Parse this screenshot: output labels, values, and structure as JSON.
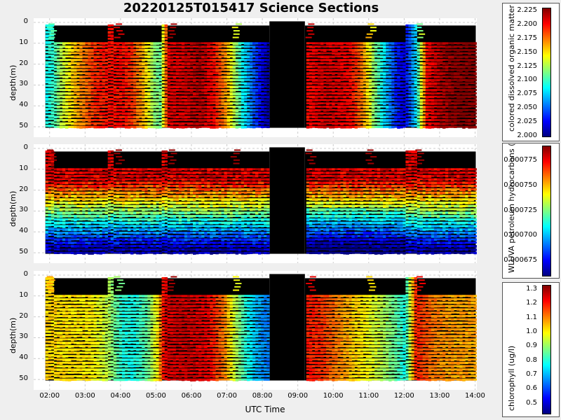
{
  "title": "20220125T015417 Science Sections",
  "xlabel": "UTC Time",
  "colors": {
    "background": "#efefef",
    "plot_bg": "#ffffff",
    "grid": "#cccccc",
    "nodata": "#000000"
  },
  "chart_data": [
    {
      "type": "heatmap",
      "name": "cdom",
      "ylabel": "depth(m)",
      "colorbar_label": "colored dissolved organic matter (ppb)",
      "colorbar_ticks": [
        "2.225",
        "2.200",
        "2.175",
        "2.150",
        "2.125",
        "2.100",
        "2.075",
        "2.050",
        "2.025",
        "2.000"
      ],
      "crange": [
        2.0,
        2.23
      ],
      "yticks": [
        "0",
        "10",
        "20",
        "30",
        "40",
        "50"
      ],
      "xticks": [
        "02:00",
        "03:00",
        "04:00",
        "05:00",
        "06:00",
        "07:00",
        "08:00",
        "09:00",
        "10:00",
        "11:00",
        "12:00",
        "13:00",
        "14:00"
      ],
      "xlim_hours": [
        1.55,
        14.05
      ],
      "ylim_m": [
        -2,
        55
      ],
      "profile": [
        [
          1.88,
          2.09
        ],
        [
          2.1,
          2.1
        ],
        [
          2.3,
          2.13
        ],
        [
          2.7,
          2.16
        ],
        [
          3.2,
          2.19
        ],
        [
          3.6,
          2.2
        ],
        [
          3.85,
          2.2
        ],
        [
          4.05,
          2.2
        ],
        [
          4.3,
          2.19
        ],
        [
          4.6,
          2.16
        ],
        [
          4.9,
          2.12
        ],
        [
          5.1,
          2.11
        ],
        [
          5.3,
          2.21
        ],
        [
          5.7,
          2.21
        ],
        [
          6.2,
          2.22
        ],
        [
          6.6,
          2.2
        ],
        [
          6.9,
          2.17
        ],
        [
          7.15,
          2.13
        ],
        [
          7.4,
          2.09
        ],
        [
          7.7,
          2.05
        ],
        [
          8.0,
          2.02
        ],
        [
          8.2,
          2.0
        ],
        [
          9.2,
          2.2
        ],
        [
          9.6,
          2.21
        ],
        [
          10.1,
          2.21
        ],
        [
          10.5,
          2.2
        ],
        [
          10.8,
          2.17
        ],
        [
          11.1,
          2.12
        ],
        [
          11.4,
          2.08
        ],
        [
          11.7,
          2.04
        ],
        [
          11.95,
          2.02
        ],
        [
          12.3,
          2.08
        ],
        [
          12.6,
          2.2
        ],
        [
          13.0,
          2.22
        ],
        [
          13.5,
          2.23
        ],
        [
          14.0,
          2.23
        ]
      ]
    },
    {
      "type": "heatmap",
      "name": "uva",
      "ylabel": "WLUVA petroleum hydrocarbons (kg)",
      "colorbar_label": "WLUVA petroleum hydrocarbons (kg)",
      "colorbar_ticks": [
        "0.000775",
        "0.000750",
        "0.000725",
        "0.000700",
        "0.000675"
      ],
      "crange": [
        0.00066,
        0.00079
      ],
      "yticks": [
        "0",
        "10",
        "20",
        "30",
        "40",
        "50"
      ],
      "xticks": [
        "02:00",
        "03:00",
        "04:00",
        "05:00",
        "06:00",
        "07:00",
        "08:00",
        "09:00",
        "10:00",
        "11:00",
        "12:00",
        "13:00",
        "14:00"
      ],
      "xlim_hours": [
        1.55,
        14.05
      ],
      "ylim_m": [
        -2,
        55
      ]
    },
    {
      "type": "heatmap",
      "name": "chlorophyll",
      "ylabel": "depth(m)",
      "colorbar_label": "chlorophyll (ug/l)",
      "colorbar_ticks": [
        "1.3",
        "1.2",
        "1.1",
        "1.0",
        "0.9",
        "0.8",
        "0.7",
        "0.6",
        "0.5"
      ],
      "crange": [
        0.43,
        1.33
      ],
      "yticks": [
        "0",
        "10",
        "20",
        "30",
        "40",
        "50"
      ],
      "xticks": [
        "02:00",
        "03:00",
        "04:00",
        "05:00",
        "06:00",
        "07:00",
        "08:00",
        "09:00",
        "10:00",
        "11:00",
        "12:00",
        "13:00",
        "14:00"
      ],
      "xlim_hours": [
        1.55,
        14.05
      ],
      "ylim_m": [
        -2,
        55
      ],
      "profile": [
        [
          1.88,
          1.03
        ],
        [
          2.5,
          1.02
        ],
        [
          3.1,
          1.01
        ],
        [
          3.6,
          0.93
        ],
        [
          4.0,
          0.8
        ],
        [
          4.3,
          0.78
        ],
        [
          4.7,
          0.85
        ],
        [
          5.0,
          1.0
        ],
        [
          5.2,
          1.25
        ],
        [
          5.8,
          1.27
        ],
        [
          6.4,
          1.24
        ],
        [
          6.9,
          1.1
        ],
        [
          7.2,
          0.93
        ],
        [
          7.5,
          0.8
        ],
        [
          7.8,
          0.7
        ],
        [
          8.1,
          0.65
        ],
        [
          9.2,
          1.2
        ],
        [
          9.6,
          1.18
        ],
        [
          10.0,
          1.12
        ],
        [
          10.4,
          1.06
        ],
        [
          10.8,
          1.0
        ],
        [
          11.2,
          0.95
        ],
        [
          11.6,
          0.88
        ],
        [
          12.0,
          0.78
        ],
        [
          12.3,
          1.2
        ],
        [
          12.7,
          1.12
        ],
        [
          13.2,
          1.08
        ],
        [
          14.0,
          1.07
        ]
      ]
    }
  ]
}
